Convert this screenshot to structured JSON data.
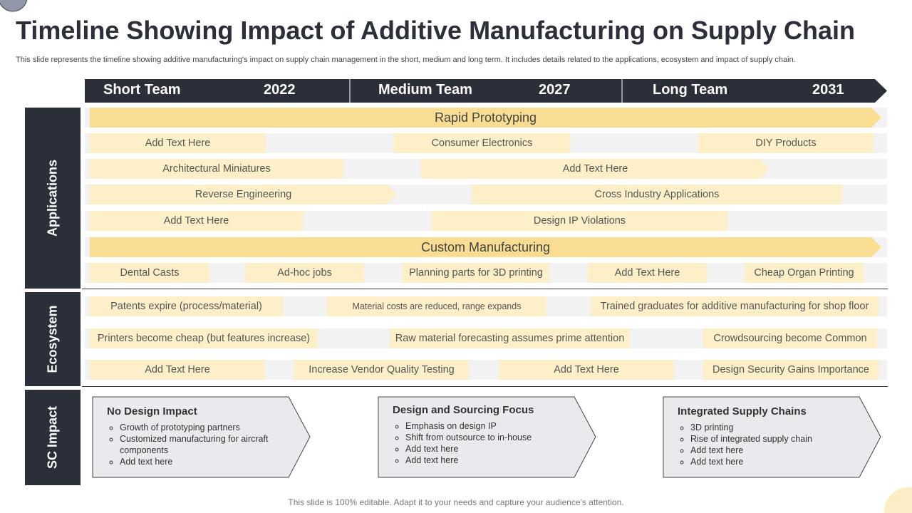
{
  "header": {
    "title": "Timeline Showing Impact of Additive Manufacturing on Supply Chain",
    "subtitle": "This slide represents the timeline showing additive manufacturing's impact on supply chain management in the short, medium and long term. It includes details related to the applications, ecosystem and impact of supply chain."
  },
  "timeline": [
    {
      "phase": "Short Team",
      "year": "2022"
    },
    {
      "phase": "Medium Team",
      "year": "2027"
    },
    {
      "phase": "Long Team",
      "year": "2031"
    }
  ],
  "applications": {
    "label": "Applications",
    "rows": [
      [
        "Rapid Prototyping"
      ],
      [
        "Add Text Here",
        "Consumer Electronics",
        "DIY Products"
      ],
      [
        "Architectural Miniatures",
        "Add Text Here"
      ],
      [
        "Reverse Engineering",
        "Cross Industry Applications"
      ],
      [
        "Add Text Here",
        "Design IP Violations"
      ],
      [
        "Custom Manufacturing"
      ],
      [
        "Dental Casts",
        "Ad-hoc jobs",
        "Planning parts for 3D printing",
        "Add Text Here",
        "Cheap Organ Printing"
      ]
    ]
  },
  "ecosystem": {
    "label": "Ecosystem",
    "rows": [
      [
        "Patents expire (process/material)",
        "Material costs are reduced, range expands",
        "Trained graduates for additive manufacturing for shop floor"
      ],
      [
        "Printers become cheap (but features increase)",
        "Raw material forecasting assumes prime attention",
        "Crowdsourcing become Common"
      ],
      [
        "Add Text Here",
        "Increase Vendor Quality Testing",
        "Add Text Here",
        "Design Security Gains Importance"
      ]
    ]
  },
  "sc_impact": {
    "label": "SC Impact",
    "cards": [
      {
        "title": "No Design Impact",
        "points": [
          "Growth of prototyping partners",
          "Customized manufacturing for aircraft components",
          "Add text here"
        ]
      },
      {
        "title": "Design and Sourcing Focus",
        "points": [
          "Emphasis on design IP",
          "Shift from outsource to in-house",
          "Add text here",
          "Add text here"
        ]
      },
      {
        "title": "Integrated Supply Chains",
        "points": [
          "3D printing",
          "Rise of integrated supply chain",
          "Add text here",
          "Add text here"
        ]
      }
    ]
  },
  "footer": "This slide is 100% editable. Adapt it to your needs and capture your audience's attention."
}
